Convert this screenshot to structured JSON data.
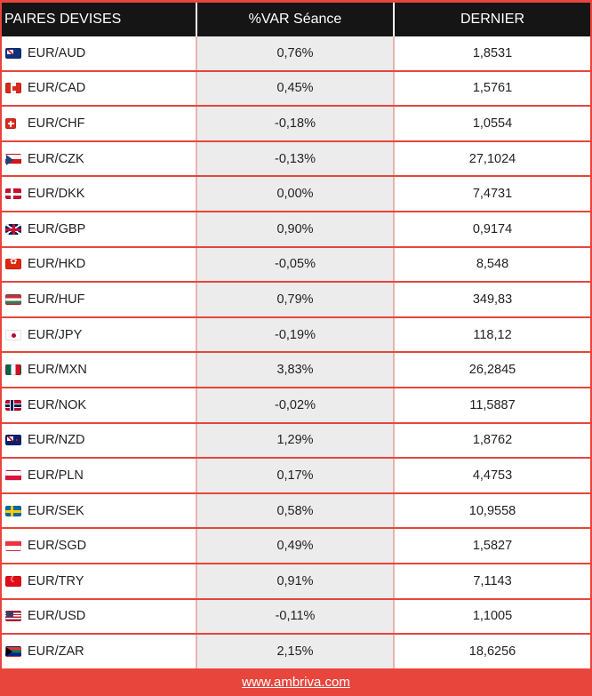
{
  "header": {
    "col_pair": "PAIRES DEVISES",
    "col_var": "%VAR Séance",
    "col_last": "DERNIER"
  },
  "rows": [
    {
      "flag": "australia-flag-icon",
      "pair": "EUR/AUD",
      "var": "0,76%",
      "last": "1,8531"
    },
    {
      "flag": "canada-flag-icon",
      "pair": "EUR/CAD",
      "var": "0,45%",
      "last": "1,5761"
    },
    {
      "flag": "switzerland-flag-icon",
      "pair": "EUR/CHF",
      "var": "-0,18%",
      "last": "1,0554"
    },
    {
      "flag": "czech-flag-icon",
      "pair": "EUR/CZK",
      "var": "-0,13%",
      "last": "27,1024"
    },
    {
      "flag": "denmark-flag-icon",
      "pair": "EUR/DKK",
      "var": "0,00%",
      "last": "7,4731"
    },
    {
      "flag": "uk-flag-icon",
      "pair": "EUR/GBP",
      "var": "0,90%",
      "last": "0,9174"
    },
    {
      "flag": "hong-kong-flag-icon",
      "pair": "EUR/HKD",
      "var": "-0,05%",
      "last": "8,548"
    },
    {
      "flag": "hungary-flag-icon",
      "pair": "EUR/HUF",
      "var": "0,79%",
      "last": "349,83"
    },
    {
      "flag": "japan-flag-icon",
      "pair": "EUR/JPY",
      "var": "-0,19%",
      "last": "118,12"
    },
    {
      "flag": "mexico-flag-icon",
      "pair": "EUR/MXN",
      "var": "3,83%",
      "last": "26,2845"
    },
    {
      "flag": "norway-flag-icon",
      "pair": "EUR/NOK",
      "var": "-0,02%",
      "last": "11,5887"
    },
    {
      "flag": "new-zealand-flag-icon",
      "pair": "EUR/NZD",
      "var": "1,29%",
      "last": "1,8762"
    },
    {
      "flag": "poland-flag-icon",
      "pair": "EUR/PLN",
      "var": "0,17%",
      "last": "4,4753"
    },
    {
      "flag": "sweden-flag-icon",
      "pair": "EUR/SEK",
      "var": "0,58%",
      "last": "10,9558"
    },
    {
      "flag": "singapore-flag-icon",
      "pair": "EUR/SGD",
      "var": "0,49%",
      "last": "1,5827"
    },
    {
      "flag": "turkey-flag-icon",
      "pair": "EUR/TRY",
      "var": "0,91%",
      "last": "7,1143"
    },
    {
      "flag": "usa-flag-icon",
      "pair": "EUR/USD",
      "var": "-0,11%",
      "last": "1,1005"
    },
    {
      "flag": "south-africa-flag-icon",
      "pair": "EUR/ZAR",
      "var": "2,15%",
      "last": "18,6256"
    }
  ],
  "footer": {
    "link_text": "www.ambriva.com"
  },
  "colors": {
    "frame": "#e8453c",
    "header_bg": "#151515",
    "var_column_bg": "#ececec"
  }
}
